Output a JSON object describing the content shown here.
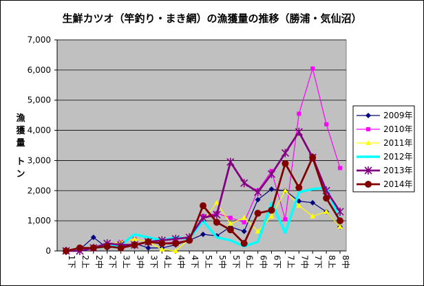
{
  "chart_data": {
    "type": "line",
    "title": "生鮮カツオ（竿釣り・まき網）の漁獲量の推移（勝浦・気仙沼）",
    "ylabel_chars": [
      "漁",
      "獲",
      "量"
    ],
    "yunit_chars": [
      "ト",
      "ン"
    ],
    "ylim": [
      0,
      7000
    ],
    "yticks": [
      "0",
      "1,000",
      "2,000",
      "3,000",
      "4,000",
      "5,000",
      "6,000",
      "7,000"
    ],
    "grid": true,
    "legend_position": "right",
    "plot_background": "#c0c0c0",
    "categories": [
      "1下",
      "2上",
      "2中",
      "2下",
      "3上",
      "3中",
      "3下",
      "4上",
      "4中",
      "4下",
      "5上",
      "5中",
      "5下",
      "6上",
      "6中",
      "6下",
      "7上",
      "7中",
      "7下",
      "8上",
      "8中"
    ],
    "series": [
      {
        "name": "2009年",
        "color": "#000080",
        "marker": "diamond",
        "width": 1.2,
        "values": [
          0,
          50,
          450,
          100,
          150,
          250,
          100,
          100,
          200,
          350,
          550,
          500,
          800,
          650,
          1700,
          2050,
          2000,
          1650,
          1600,
          1300,
          800
        ]
      },
      {
        "name": "2010年",
        "color": "#ff00ff",
        "marker": "square",
        "width": 1.2,
        "values": [
          0,
          50,
          100,
          150,
          300,
          400,
          300,
          250,
          300,
          350,
          1150,
          1250,
          1100,
          950,
          2000,
          2650,
          1050,
          4550,
          6050,
          4200,
          2750
        ]
      },
      {
        "name": "2011年",
        "color": "#ffff00",
        "marker": "triangle",
        "width": 1.2,
        "values": [
          0,
          50,
          150,
          200,
          300,
          400,
          300,
          50,
          0,
          400,
          1000,
          1600,
          900,
          1100,
          650,
          1150,
          2000,
          1500,
          1150,
          1300,
          800
        ]
      },
      {
        "name": "2012年",
        "color": "#00ffff",
        "marker": "none",
        "width": 3.5,
        "values": [
          0,
          50,
          100,
          150,
          200,
          550,
          450,
          350,
          450,
          400,
          1000,
          450,
          350,
          150,
          300,
          1600,
          600,
          1950,
          2050,
          2100,
          1000
        ]
      },
      {
        "name": "2013年",
        "color": "#800080",
        "marker": "star",
        "width": 2.8,
        "values": [
          0,
          0,
          100,
          250,
          200,
          200,
          300,
          350,
          400,
          450,
          1100,
          1200,
          2950,
          2250,
          1950,
          2550,
          3250,
          3950,
          3100,
          2000,
          1300
        ]
      },
      {
        "name": "2014年",
        "color": "#800000",
        "marker": "circle",
        "width": 2.8,
        "values": [
          0,
          100,
          100,
          150,
          100,
          200,
          300,
          250,
          250,
          350,
          1500,
          950,
          700,
          250,
          1250,
          1350,
          2900,
          2100,
          3100,
          1750,
          1000
        ]
      }
    ]
  }
}
